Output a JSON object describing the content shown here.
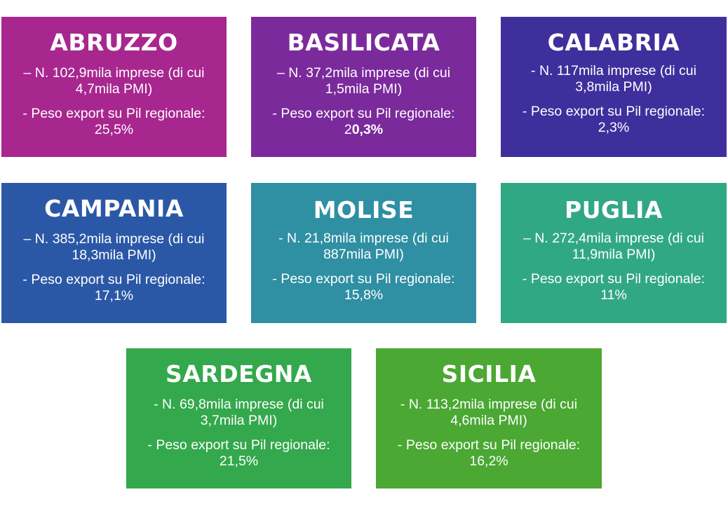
{
  "regions": [
    {
      "id": "abruzzo",
      "name": "ABRUZZO",
      "imprese_line1": "– N. 102,9mila imprese (di cui",
      "imprese_line2": "4,7mila PMI)",
      "export_line1": "- Peso export su Pil regionale:",
      "export_value": "25,5%",
      "color": "#a8278f"
    },
    {
      "id": "basilicata",
      "name": "BASILICATA",
      "imprese_line1": "– N. 37,2mila imprese (di cui",
      "imprese_line2": "1,5mila PMI)",
      "export_line1": "- Peso export su Pil regionale:",
      "export_value_prefix": "2",
      "export_value_bold": "0,3%",
      "color": "#7b2a9c"
    },
    {
      "id": "calabria",
      "name": "CALABRIA",
      "imprese_line1": "- N. 117mila imprese (di cui",
      "imprese_line2": "3,8mila PMI)",
      "export_line1": "- Peso export su Pil regionale:",
      "export_value": "2,3%",
      "color": "#3f2f9d"
    },
    {
      "id": "campania",
      "name": "CAMPANIA",
      "imprese_line1": "– N. 385,2mila imprese (di cui",
      "imprese_line2": "18,3mila PMI)",
      "export_line1": "- Peso export su Pil regionale:",
      "export_value": "17,1%",
      "color": "#2b58a6"
    },
    {
      "id": "molise",
      "name": "MOLISE",
      "imprese_line1": "- N. 21,8mila imprese (di cui",
      "imprese_line2": "887mila PMI)",
      "export_line1": "- Peso export su Pil regionale:",
      "export_value": "15,8%",
      "color": "#2f8fa3"
    },
    {
      "id": "puglia",
      "name": "PUGLIA",
      "imprese_line1": "– N. 272,4mila imprese (di cui",
      "imprese_line2": "11,9mila PMI)",
      "export_line1": "- Peso export su Pil regionale:",
      "export_value": "11%",
      "color": "#31a884"
    },
    {
      "id": "sardegna",
      "name": "SARDEGNA",
      "imprese_line1": "- N. 69,8mila imprese (di cui",
      "imprese_line2": "3,7mila PMI)",
      "export_line1": "- Peso export su Pil regionale:",
      "export_value": "21,5%",
      "color": "#34a84c"
    },
    {
      "id": "sicilia",
      "name": "SICILIA",
      "imprese_line1": "- N. 113,2mila imprese (di cui",
      "imprese_line2": "4,6mila PMI)",
      "export_line1": "- Peso export su Pil regionale:",
      "export_value": "16,2%",
      "color": "#4aa833"
    }
  ]
}
